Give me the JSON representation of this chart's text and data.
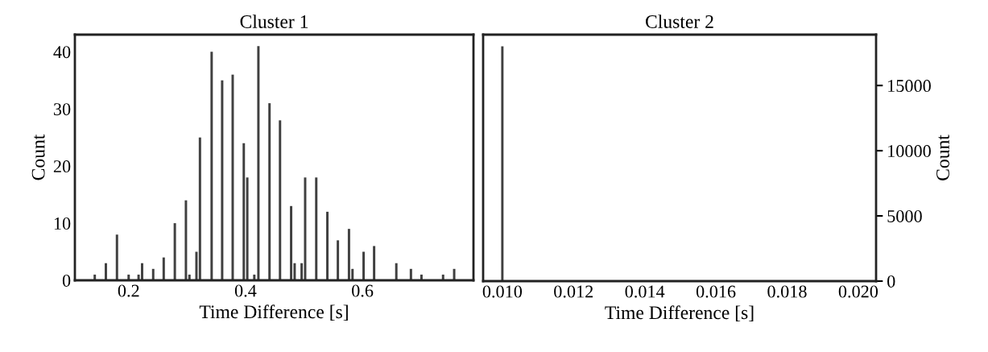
{
  "chart_data": [
    {
      "type": "bar",
      "title": "Cluster 1",
      "xlabel": "Time Difference [s]",
      "ylabel": "Count",
      "color": "#404040",
      "x": [
        0.142,
        0.161,
        0.18,
        0.2,
        0.217,
        0.223,
        0.242,
        0.26,
        0.279,
        0.298,
        0.304,
        0.316,
        0.322,
        0.342,
        0.36,
        0.378,
        0.397,
        0.403,
        0.415,
        0.422,
        0.441,
        0.459,
        0.478,
        0.484,
        0.496,
        0.502,
        0.521,
        0.54,
        0.558,
        0.577,
        0.583,
        0.602,
        0.62,
        0.658,
        0.683,
        0.701,
        0.738,
        0.757
      ],
      "values": [
        1,
        3,
        8,
        1,
        1,
        3,
        2,
        4,
        10,
        14,
        1,
        5,
        25,
        40,
        35,
        36,
        24,
        18,
        1,
        41,
        31,
        28,
        13,
        3,
        3,
        18,
        18,
        12,
        7,
        9,
        2,
        5,
        6,
        3,
        2,
        1,
        1,
        2
      ],
      "xlim": [
        0.108,
        0.79
      ],
      "xticks": [
        0.2,
        0.4,
        0.6
      ],
      "ylim": [
        0,
        43
      ],
      "yticks": [
        0,
        10,
        20,
        30,
        40
      ],
      "grid": false
    },
    {
      "type": "bar",
      "title": "Cluster 2",
      "xlabel": "Time Difference [s]",
      "ylabel": "Count",
      "color": "#404040",
      "x": [
        0.01
      ],
      "values": [
        18000
      ],
      "xlim": [
        0.00946,
        0.0205
      ],
      "xticks": [
        {
          "value": 0.01,
          "label": "0.010"
        },
        {
          "value": 0.012,
          "label": "0.012"
        },
        {
          "value": 0.014,
          "label": "0.014"
        },
        {
          "value": 0.016,
          "label": "0.016"
        },
        {
          "value": 0.018,
          "label": "0.018"
        },
        {
          "value": 0.02,
          "label": "0.020"
        }
      ],
      "ylim": [
        0,
        18900
      ],
      "yticks": [
        0,
        5000,
        10000,
        15000
      ],
      "grid": false
    }
  ]
}
